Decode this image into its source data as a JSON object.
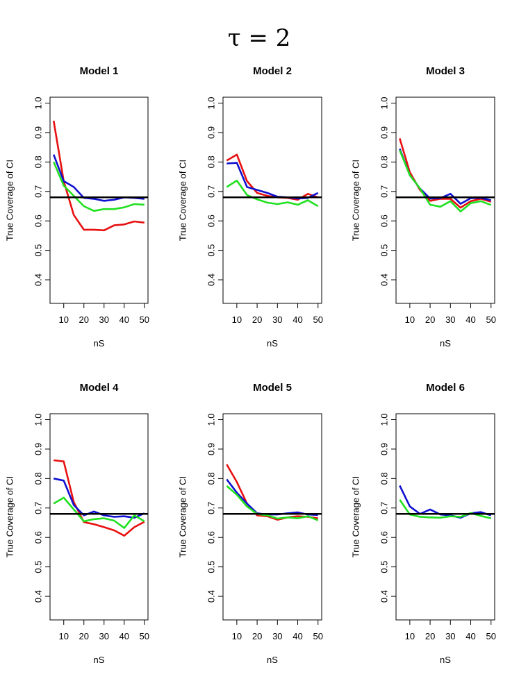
{
  "figure": {
    "title": "τ = 2"
  },
  "colors": {
    "reference": "#000000",
    "series": [
      "#e81010",
      "#1010d0",
      "#20e020"
    ]
  },
  "chart_data": [
    {
      "type": "line",
      "title": "Model 1",
      "xlabel": "nS",
      "ylabel": "True Coverage of CI",
      "x": [
        5,
        10,
        15,
        20,
        25,
        30,
        35,
        40,
        45,
        50
      ],
      "xticks": [
        10,
        20,
        30,
        40,
        50
      ],
      "yticks": [
        0.4,
        0.5,
        0.6,
        0.7,
        0.8,
        0.9,
        1.0
      ],
      "ylim": [
        0.32,
        1.02
      ],
      "xlim": [
        3.2,
        51.8
      ],
      "hline": 0.68,
      "series": [
        {
          "color": "#e81010",
          "values": [
            0.94,
            0.735,
            0.62,
            0.57,
            0.57,
            0.568,
            0.585,
            0.588,
            0.598,
            0.594
          ]
        },
        {
          "color": "#1010d0",
          "values": [
            0.825,
            0.735,
            0.715,
            0.678,
            0.675,
            0.668,
            0.672,
            0.68,
            0.678,
            0.675
          ]
        },
        {
          "color": "#20e020",
          "values": [
            0.8,
            0.72,
            0.685,
            0.65,
            0.634,
            0.64,
            0.64,
            0.646,
            0.657,
            0.655
          ]
        }
      ]
    },
    {
      "type": "line",
      "title": "Model 2",
      "xlabel": "nS",
      "ylabel": "True Coverage of CI",
      "x": [
        5,
        10,
        15,
        20,
        25,
        30,
        35,
        40,
        45,
        50
      ],
      "xticks": [
        10,
        20,
        30,
        40,
        50
      ],
      "yticks": [
        0.4,
        0.5,
        0.6,
        0.7,
        0.8,
        0.9,
        1.0
      ],
      "ylim": [
        0.32,
        1.02
      ],
      "xlim": [
        3.2,
        51.8
      ],
      "hline": 0.68,
      "series": [
        {
          "color": "#e81010",
          "values": [
            0.805,
            0.825,
            0.735,
            0.695,
            0.685,
            0.68,
            0.678,
            0.672,
            0.692,
            0.68
          ]
        },
        {
          "color": "#1010d0",
          "values": [
            0.795,
            0.797,
            0.715,
            0.705,
            0.695,
            0.682,
            0.68,
            0.676,
            0.678,
            0.695
          ]
        },
        {
          "color": "#20e020",
          "values": [
            0.715,
            0.737,
            0.688,
            0.673,
            0.662,
            0.657,
            0.663,
            0.655,
            0.67,
            0.65
          ]
        }
      ]
    },
    {
      "type": "line",
      "title": "Model 3",
      "xlabel": "nS",
      "ylabel": "True Coverage of CI",
      "x": [
        5,
        10,
        15,
        20,
        25,
        30,
        35,
        40,
        45,
        50
      ],
      "xticks": [
        10,
        20,
        30,
        40,
        50
      ],
      "yticks": [
        0.4,
        0.5,
        0.6,
        0.7,
        0.8,
        0.9,
        1.0
      ],
      "ylim": [
        0.32,
        1.02
      ],
      "xlim": [
        3.2,
        51.8
      ],
      "hline": 0.68,
      "series": [
        {
          "color": "#e81010",
          "values": [
            0.88,
            0.765,
            0.705,
            0.668,
            0.675,
            0.675,
            0.645,
            0.667,
            0.675,
            0.665
          ]
        },
        {
          "color": "#1010d0",
          "values": [
            0.845,
            0.755,
            0.71,
            0.676,
            0.677,
            0.692,
            0.658,
            0.677,
            0.678,
            0.67
          ]
        },
        {
          "color": "#20e020",
          "values": [
            0.84,
            0.755,
            0.71,
            0.655,
            0.648,
            0.667,
            0.632,
            0.66,
            0.667,
            0.654
          ]
        }
      ]
    },
    {
      "type": "line",
      "title": "Model 4",
      "xlabel": "nS",
      "ylabel": "True Coverage of CI",
      "x": [
        5,
        10,
        15,
        20,
        25,
        30,
        35,
        40,
        45,
        50
      ],
      "xticks": [
        10,
        20,
        30,
        40,
        50
      ],
      "yticks": [
        0.4,
        0.5,
        0.6,
        0.7,
        0.8,
        0.9,
        1.0
      ],
      "ylim": [
        0.32,
        1.02
      ],
      "xlim": [
        3.2,
        51.8
      ],
      "hline": 0.68,
      "series": [
        {
          "color": "#e81010",
          "values": [
            0.862,
            0.858,
            0.72,
            0.652,
            0.645,
            0.635,
            0.624,
            0.606,
            0.635,
            0.653
          ]
        },
        {
          "color": "#1010d0",
          "values": [
            0.8,
            0.793,
            0.71,
            0.675,
            0.688,
            0.675,
            0.67,
            0.672,
            0.667,
            0.682
          ]
        },
        {
          "color": "#20e020",
          "values": [
            0.715,
            0.735,
            0.695,
            0.655,
            0.662,
            0.665,
            0.657,
            0.632,
            0.675,
            0.655
          ]
        }
      ]
    },
    {
      "type": "line",
      "title": "Model 5",
      "xlabel": "nS",
      "ylabel": "True Coverage of CI",
      "x": [
        5,
        10,
        15,
        20,
        25,
        30,
        35,
        40,
        45,
        50
      ],
      "xticks": [
        10,
        20,
        30,
        40,
        50
      ],
      "yticks": [
        0.4,
        0.5,
        0.6,
        0.7,
        0.8,
        0.9,
        1.0
      ],
      "ylim": [
        0.32,
        1.02
      ],
      "xlim": [
        3.2,
        51.8
      ],
      "hline": 0.68,
      "series": [
        {
          "color": "#e81010",
          "values": [
            0.848,
            0.788,
            0.715,
            0.675,
            0.672,
            0.66,
            0.668,
            0.672,
            0.67,
            0.665
          ]
        },
        {
          "color": "#1010d0",
          "values": [
            0.797,
            0.752,
            0.715,
            0.682,
            0.678,
            0.678,
            0.682,
            0.685,
            0.678,
            0.676
          ]
        },
        {
          "color": "#20e020",
          "values": [
            0.775,
            0.745,
            0.705,
            0.68,
            0.675,
            0.664,
            0.668,
            0.665,
            0.672,
            0.658
          ]
        }
      ]
    },
    {
      "type": "line",
      "title": "Model 6",
      "xlabel": "nS",
      "ylabel": "True Coverage of CI",
      "x": [
        5,
        10,
        15,
        20,
        25,
        30,
        35,
        40,
        45,
        50
      ],
      "xticks": [
        10,
        20,
        30,
        40,
        50
      ],
      "yticks": [
        0.4,
        0.5,
        0.6,
        0.7,
        0.8,
        0.9,
        1.0
      ],
      "ylim": [
        0.32,
        1.02
      ],
      "xlim": [
        3.2,
        51.8
      ],
      "hline": 0.68,
      "series": [
        {
          "color": "#1010d0",
          "values": [
            0.776,
            0.705,
            0.68,
            0.695,
            0.678,
            0.675,
            0.667,
            0.682,
            0.686,
            0.675
          ]
        },
        {
          "color": "#20e020",
          "values": [
            0.728,
            0.678,
            0.67,
            0.668,
            0.667,
            0.672,
            0.67,
            0.683,
            0.673,
            0.665
          ]
        }
      ]
    }
  ]
}
